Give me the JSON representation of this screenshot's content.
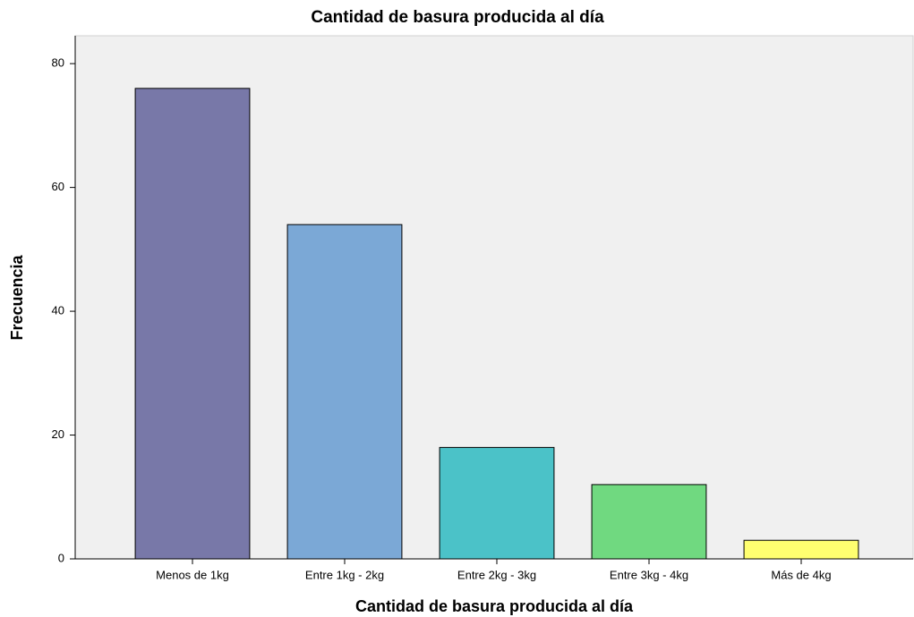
{
  "chart_data": {
    "type": "bar",
    "title": "Cantidad de basura producida al día",
    "x_label": "Cantidad de basura producida al día",
    "y_label": "Frecuencia",
    "categories": [
      "Menos de 1kg",
      "Entre 1kg - 2kg",
      "Entre 2kg - 3kg",
      "Entre 3kg - 4kg",
      "Más de 4kg"
    ],
    "values": [
      76,
      54,
      18,
      12,
      3
    ],
    "colors": [
      "#7878a8",
      "#7ba8d6",
      "#4bc2c8",
      "#70d980",
      "#ffff70"
    ],
    "ylim": [
      0,
      84.5
    ],
    "yticks": [
      0,
      20,
      40,
      60,
      80
    ],
    "grid": false
  }
}
